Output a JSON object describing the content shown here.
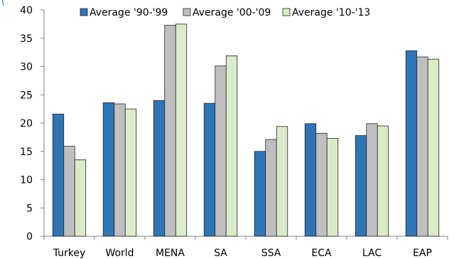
{
  "chart_data": {
    "type": "bar",
    "title": "",
    "partial_title_fragment": "(",
    "xlabel": "",
    "ylabel": "",
    "ylim": [
      0,
      40
    ],
    "yticks": [
      0,
      5,
      10,
      15,
      20,
      25,
      30,
      35,
      40
    ],
    "grid": false,
    "legend_position": "top",
    "categories": [
      "Turkey",
      "World",
      "MENA",
      "SA",
      "SSA",
      "ECA",
      "LAC",
      "EAP"
    ],
    "series": [
      {
        "name": "Average '90-'99",
        "color": "#2e75b6",
        "values": [
          21.6,
          23.6,
          24.0,
          23.5,
          15.0,
          19.9,
          17.8,
          32.8
        ]
      },
      {
        "name": "Average '00-'09",
        "color": "#bfbfbf",
        "values": [
          15.9,
          23.4,
          37.3,
          30.1,
          17.1,
          18.2,
          19.9,
          31.7
        ]
      },
      {
        "name": "Average '10-'13",
        "color": "#dbeac8",
        "values": [
          13.5,
          22.5,
          37.5,
          31.9,
          19.4,
          17.3,
          19.5,
          31.3
        ]
      }
    ]
  }
}
